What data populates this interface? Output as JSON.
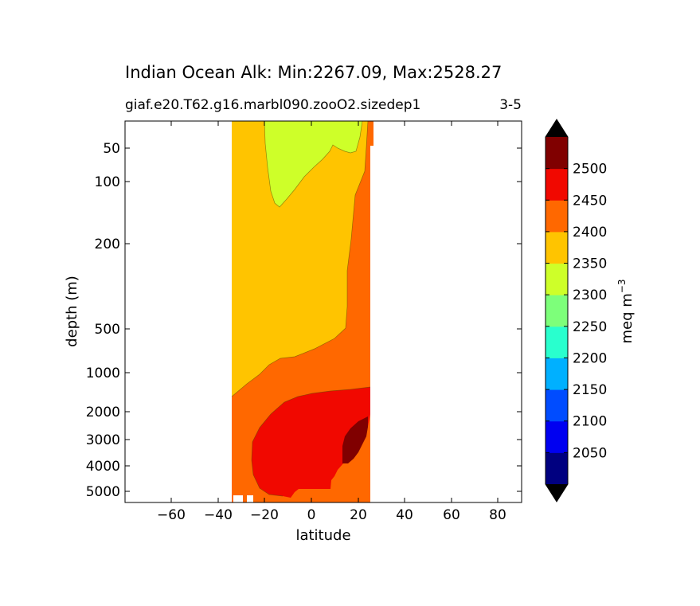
{
  "chart_data": {
    "type": "heatmap",
    "title": "Indian Ocean Alk: Min:2267.09, Max:2528.27",
    "subtitle_left": "giaf.e20.T62.g16.marbl090.zooO2.sizedep1",
    "subtitle_right": "3-5",
    "xlabel": "latitude",
    "ylabel": "depth (m)",
    "xlim": [
      -80,
      90
    ],
    "x_ticks": [
      "−60",
      "−40",
      "−20",
      "0",
      "20",
      "40",
      "60",
      "80"
    ],
    "y_ticks": [
      "50",
      "100",
      "200",
      "500",
      "1000",
      "2000",
      "3000",
      "4000",
      "5000"
    ],
    "y_scale": "nonlinear (depth increasing downward)",
    "colorbar": {
      "label": "meq m−3",
      "label_main": "meq m",
      "label_sup": "−3",
      "tick_labels": [
        "2050",
        "2100",
        "2150",
        "2200",
        "2250",
        "2300",
        "2350",
        "2400",
        "2450",
        "2500"
      ],
      "levels": [
        2000,
        2050,
        2100,
        2150,
        2200,
        2250,
        2300,
        2350,
        2400,
        2450,
        2500,
        2550
      ],
      "colors": [
        "#000080",
        "#0000f1",
        "#004cff",
        "#00b0ff",
        "#29ffce",
        "#7dff7a",
        "#ceff29",
        "#ffc400",
        "#ff6800",
        "#f10800",
        "#800000"
      ],
      "extend": "both",
      "under_color": "#000000",
      "over_color": "#000000"
    },
    "regions": [
      {
        "name": "Alk 2300-2350 (surface, south-central)",
        "color": "#ceff29"
      },
      {
        "name": "Alk 2350-2400 (upper ocean)",
        "color": "#ffc400"
      },
      {
        "name": "Alk 2400-2450 (intermediate / deep)",
        "color": "#ff6800"
      },
      {
        "name": "Alk 2450-2500 (deep)",
        "color": "#f10800"
      },
      {
        "name": "Alk 2500-2550 (abyssal, northern)",
        "color": "#800000"
      }
    ]
  }
}
